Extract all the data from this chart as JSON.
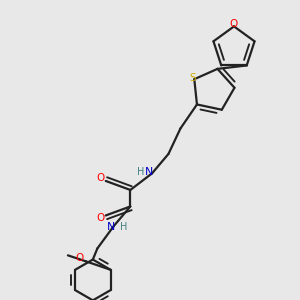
{
  "bg_color": "#e8e8e8",
  "bond_color": "#222222",
  "N_color": "#0000cc",
  "O_color": "#ff0000",
  "S_color": "#ccaa00",
  "H_color": "#408080",
  "lw": 1.6,
  "figsize": [
    3.0,
    3.0
  ],
  "dpi": 100,
  "xlim": [
    0.0,
    10.0
  ],
  "ylim": [
    0.0,
    10.0
  ]
}
